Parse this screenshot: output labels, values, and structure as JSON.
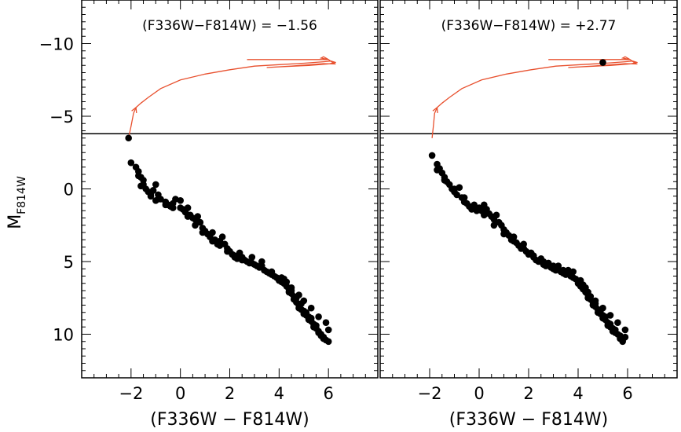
{
  "chart_data": {
    "type": "scatter",
    "ylabel": "M",
    "ylabel_sub": "F814W",
    "ylim": [
      13,
      -13
    ],
    "yticks": [
      {
        "value": -10,
        "label": "−10"
      },
      {
        "value": -5,
        "label": "−5"
      },
      {
        "value": 0,
        "label": "0"
      },
      {
        "value": 5,
        "label": "5"
      },
      {
        "value": 10,
        "label": "10"
      }
    ],
    "hline": -3.8,
    "track_color": "#e8502e",
    "marker_color": "#000000",
    "panels": [
      {
        "title": "(F336W−F814W) = −1.56",
        "xlabel": "(F336W − F814W)",
        "xlim": [
          -4,
          8
        ],
        "xticks": [
          {
            "value": -2,
            "label": "−2"
          },
          {
            "value": 0,
            "label": "0"
          },
          {
            "value": 2,
            "label": "2"
          },
          {
            "value": 4,
            "label": "4"
          },
          {
            "value": 6,
            "label": "6"
          }
        ],
        "highlight": {
          "x": -2.1,
          "y": -3.5
        },
        "track": [
          [
            -2.1,
            -3.5
          ],
          [
            -2.0,
            -4.3
          ],
          [
            -1.9,
            -5.2
          ],
          [
            -1.8,
            -5.6
          ],
          [
            -1.6,
            -5.9
          ],
          [
            -1.3,
            -6.3
          ],
          [
            -0.8,
            -6.9
          ],
          [
            0.0,
            -7.5
          ],
          [
            1.0,
            -7.9
          ],
          [
            2.0,
            -8.2
          ],
          [
            3.0,
            -8.45
          ],
          [
            4.0,
            -8.55
          ],
          [
            5.0,
            -8.65
          ],
          [
            5.8,
            -8.75
          ],
          [
            6.1,
            -8.8
          ],
          [
            6.3,
            -8.7
          ],
          [
            6.0,
            -8.6
          ],
          [
            5.2,
            -8.5
          ],
          [
            4.0,
            -8.4
          ],
          [
            3.5,
            -8.35
          ],
          [
            4.5,
            -8.45
          ],
          [
            5.8,
            -8.62
          ],
          [
            6.25,
            -8.6
          ],
          [
            6.0,
            -8.9
          ],
          [
            5.8,
            -9.1
          ],
          [
            5.7,
            -9.0
          ],
          [
            6.0,
            -8.9
          ],
          [
            5.0,
            -8.9
          ],
          [
            4.0,
            -8.9
          ],
          [
            2.7,
            -8.9
          ]
        ],
        "stars": [
          [
            -2.0,
            -1.8
          ],
          [
            -1.8,
            -1.5
          ],
          [
            -1.7,
            -1.2
          ],
          [
            -1.6,
            -0.8
          ],
          [
            -1.5,
            -0.6
          ],
          [
            -1.6,
            -0.2
          ],
          [
            -1.4,
            0.0
          ],
          [
            -1.3,
            0.2
          ],
          [
            -1.2,
            0.5
          ],
          [
            -1.1,
            0.1
          ],
          [
            -1.0,
            0.8
          ],
          [
            -1.0,
            -0.3
          ],
          [
            -0.9,
            0.4
          ],
          [
            -0.8,
            0.7
          ],
          [
            -0.6,
            0.9
          ],
          [
            -0.5,
            1.1
          ],
          [
            -0.4,
            1.2
          ],
          [
            -0.3,
            1.0
          ],
          [
            -0.2,
            0.7
          ],
          [
            0.0,
            0.8
          ],
          [
            0.1,
            1.4
          ],
          [
            0.2,
            1.6
          ],
          [
            0.3,
            1.3
          ],
          [
            0.4,
            1.8
          ],
          [
            0.5,
            2.0
          ],
          [
            0.6,
            2.1
          ],
          [
            0.7,
            1.9
          ],
          [
            0.8,
            2.3
          ],
          [
            0.9,
            2.7
          ],
          [
            1.0,
            2.9
          ],
          [
            1.1,
            3.1
          ],
          [
            1.2,
            3.3
          ],
          [
            1.3,
            3.0
          ],
          [
            1.4,
            3.5
          ],
          [
            1.5,
            3.8
          ],
          [
            1.6,
            3.6
          ],
          [
            1.7,
            3.3
          ],
          [
            1.8,
            3.8
          ],
          [
            1.9,
            4.1
          ],
          [
            2.0,
            4.3
          ],
          [
            2.1,
            4.5
          ],
          [
            2.2,
            4.6
          ],
          [
            2.3,
            4.8
          ],
          [
            2.4,
            4.4
          ],
          [
            2.5,
            4.7
          ],
          [
            2.6,
            4.9
          ],
          [
            2.7,
            5.0
          ],
          [
            2.8,
            5.1
          ],
          [
            2.9,
            4.7
          ],
          [
            3.0,
            5.2
          ],
          [
            3.1,
            5.3
          ],
          [
            3.2,
            5.4
          ],
          [
            3.3,
            5.0
          ],
          [
            3.4,
            5.6
          ],
          [
            3.5,
            5.7
          ],
          [
            3.6,
            5.8
          ],
          [
            3.7,
            5.9
          ],
          [
            3.8,
            6.0
          ],
          [
            3.9,
            6.1
          ],
          [
            4.0,
            6.3
          ],
          [
            4.1,
            6.4
          ],
          [
            4.2,
            6.5
          ],
          [
            4.2,
            6.2
          ],
          [
            4.3,
            6.7
          ],
          [
            4.4,
            6.9
          ],
          [
            4.4,
            7.1
          ],
          [
            4.5,
            7.2
          ],
          [
            4.5,
            7.0
          ],
          [
            4.6,
            7.4
          ],
          [
            4.6,
            7.6
          ],
          [
            4.7,
            7.8
          ],
          [
            4.7,
            7.5
          ],
          [
            4.8,
            8.0
          ],
          [
            4.8,
            8.2
          ],
          [
            4.9,
            7.9
          ],
          [
            4.9,
            8.3
          ],
          [
            5.0,
            8.4
          ],
          [
            5.0,
            8.6
          ],
          [
            5.1,
            8.7
          ],
          [
            5.1,
            8.5
          ],
          [
            5.2,
            8.8
          ],
          [
            5.2,
            9.0
          ],
          [
            5.3,
            9.1
          ],
          [
            5.3,
            8.9
          ],
          [
            5.4,
            9.3
          ],
          [
            5.4,
            9.5
          ],
          [
            5.5,
            9.6
          ],
          [
            5.5,
            9.4
          ],
          [
            5.6,
            9.8
          ],
          [
            5.6,
            9.9
          ],
          [
            5.7,
            10.0
          ],
          [
            5.7,
            10.1
          ],
          [
            5.8,
            10.2
          ],
          [
            5.8,
            10.3
          ],
          [
            5.9,
            10.4
          ],
          [
            6.0,
            10.5
          ],
          [
            6.0,
            9.7
          ],
          [
            5.9,
            9.2
          ],
          [
            5.6,
            8.8
          ],
          [
            5.3,
            8.2
          ],
          [
            5.0,
            7.7
          ],
          [
            4.8,
            7.3
          ],
          [
            4.5,
            6.8
          ],
          [
            4.3,
            6.4
          ],
          [
            4.1,
            6.1
          ],
          [
            3.7,
            5.7
          ],
          [
            3.3,
            5.3
          ],
          [
            2.9,
            5.1
          ],
          [
            2.5,
            4.9
          ],
          [
            2.2,
            4.7
          ],
          [
            1.9,
            4.3
          ],
          [
            1.6,
            3.9
          ],
          [
            1.3,
            3.6
          ],
          [
            0.9,
            3.0
          ],
          [
            0.6,
            2.5
          ],
          [
            0.3,
            1.9
          ],
          [
            0.0,
            1.3
          ],
          [
            -0.3,
            1.3
          ],
          [
            -0.6,
            1.1
          ],
          [
            -0.9,
            0.7
          ],
          [
            -1.2,
            0.3
          ],
          [
            -1.5,
            -0.3
          ],
          [
            -1.7,
            -0.9
          ]
        ]
      },
      {
        "title": "(F336W−F814W) = +2.77",
        "xlabel": "(F336W − F814W)",
        "xlim": [
          -4,
          8
        ],
        "xticks": [
          {
            "value": -2,
            "label": "−2"
          },
          {
            "value": 0,
            "label": "0"
          },
          {
            "value": 2,
            "label": "2"
          },
          {
            "value": 4,
            "label": "4"
          },
          {
            "value": 6,
            "label": "6"
          }
        ],
        "highlight": {
          "x": 5.0,
          "y": -8.7
        },
        "track": [
          [
            -1.9,
            -3.5
          ],
          [
            -1.85,
            -4.3
          ],
          [
            -1.8,
            -5.2
          ],
          [
            -1.7,
            -5.6
          ],
          [
            -1.5,
            -5.9
          ],
          [
            -1.2,
            -6.3
          ],
          [
            -0.7,
            -6.9
          ],
          [
            0.1,
            -7.5
          ],
          [
            1.1,
            -7.9
          ],
          [
            2.1,
            -8.2
          ],
          [
            3.1,
            -8.45
          ],
          [
            4.1,
            -8.55
          ],
          [
            5.1,
            -8.65
          ],
          [
            5.9,
            -8.75
          ],
          [
            6.2,
            -8.8
          ],
          [
            6.4,
            -8.7
          ],
          [
            6.1,
            -8.6
          ],
          [
            5.3,
            -8.5
          ],
          [
            4.1,
            -8.4
          ],
          [
            3.6,
            -8.35
          ],
          [
            4.6,
            -8.45
          ],
          [
            5.9,
            -8.62
          ],
          [
            6.35,
            -8.6
          ],
          [
            6.1,
            -8.9
          ],
          [
            5.9,
            -9.1
          ],
          [
            5.8,
            -9.0
          ],
          [
            6.1,
            -8.9
          ],
          [
            5.1,
            -8.9
          ],
          [
            4.1,
            -8.9
          ],
          [
            2.8,
            -8.9
          ]
        ],
        "stars": [
          [
            -1.9,
            -2.3
          ],
          [
            -1.7,
            -1.7
          ],
          [
            -1.6,
            -1.4
          ],
          [
            -1.5,
            -1.1
          ],
          [
            -1.4,
            -0.8
          ],
          [
            -1.3,
            -0.5
          ],
          [
            -1.2,
            -0.3
          ],
          [
            -1.1,
            0.0
          ],
          [
            -1.0,
            0.2
          ],
          [
            -0.9,
            0.4
          ],
          [
            -0.8,
            -0.1
          ],
          [
            -0.7,
            0.6
          ],
          [
            -0.6,
            0.9
          ],
          [
            -0.5,
            1.0
          ],
          [
            -0.4,
            1.2
          ],
          [
            -0.3,
            1.4
          ],
          [
            -0.2,
            1.1
          ],
          [
            -0.1,
            1.5
          ],
          [
            0.0,
            1.3
          ],
          [
            0.1,
            1.5
          ],
          [
            0.2,
            1.1
          ],
          [
            0.3,
            1.4
          ],
          [
            0.4,
            1.7
          ],
          [
            0.5,
            1.9
          ],
          [
            0.6,
            2.1
          ],
          [
            0.7,
            1.8
          ],
          [
            0.8,
            2.3
          ],
          [
            0.9,
            2.5
          ],
          [
            1.0,
            2.8
          ],
          [
            1.1,
            3.0
          ],
          [
            1.2,
            3.2
          ],
          [
            1.3,
            3.5
          ],
          [
            1.4,
            3.3
          ],
          [
            1.5,
            3.7
          ],
          [
            1.6,
            3.9
          ],
          [
            1.7,
            4.1
          ],
          [
            1.8,
            3.8
          ],
          [
            1.9,
            4.3
          ],
          [
            2.0,
            4.5
          ],
          [
            2.1,
            4.4
          ],
          [
            2.2,
            4.7
          ],
          [
            2.3,
            4.9
          ],
          [
            2.4,
            5.0
          ],
          [
            2.5,
            4.8
          ],
          [
            2.6,
            5.2
          ],
          [
            2.7,
            5.3
          ],
          [
            2.8,
            5.1
          ],
          [
            2.9,
            5.4
          ],
          [
            3.0,
            5.5
          ],
          [
            3.1,
            5.6
          ],
          [
            3.2,
            5.3
          ],
          [
            3.3,
            5.7
          ],
          [
            3.4,
            5.8
          ],
          [
            3.5,
            5.9
          ],
          [
            3.6,
            5.6
          ],
          [
            3.7,
            6.0
          ],
          [
            3.8,
            5.7
          ],
          [
            3.9,
            6.2
          ],
          [
            4.0,
            6.5
          ],
          [
            4.1,
            6.7
          ],
          [
            4.1,
            6.3
          ],
          [
            4.2,
            6.9
          ],
          [
            4.3,
            7.1
          ],
          [
            4.3,
            6.8
          ],
          [
            4.4,
            7.3
          ],
          [
            4.4,
            7.5
          ],
          [
            4.5,
            7.6
          ],
          [
            4.5,
            7.4
          ],
          [
            4.6,
            7.8
          ],
          [
            4.6,
            8.0
          ],
          [
            4.7,
            8.1
          ],
          [
            4.7,
            7.9
          ],
          [
            4.8,
            8.3
          ],
          [
            4.8,
            8.5
          ],
          [
            4.9,
            8.6
          ],
          [
            4.9,
            8.4
          ],
          [
            5.0,
            8.7
          ],
          [
            5.0,
            8.9
          ],
          [
            5.1,
            9.0
          ],
          [
            5.1,
            8.8
          ],
          [
            5.2,
            9.2
          ],
          [
            5.2,
            9.4
          ],
          [
            5.3,
            9.5
          ],
          [
            5.3,
            9.3
          ],
          [
            5.4,
            9.6
          ],
          [
            5.4,
            9.8
          ],
          [
            5.5,
            9.9
          ],
          [
            5.5,
            9.7
          ],
          [
            5.6,
            10.0
          ],
          [
            5.7,
            10.1
          ],
          [
            5.7,
            10.3
          ],
          [
            5.8,
            10.4
          ],
          [
            5.8,
            10.5
          ],
          [
            5.9,
            10.2
          ],
          [
            5.9,
            9.7
          ],
          [
            5.6,
            9.2
          ],
          [
            5.3,
            8.7
          ],
          [
            5.0,
            8.2
          ],
          [
            4.7,
            7.7
          ],
          [
            4.4,
            7.1
          ],
          [
            4.2,
            6.6
          ],
          [
            3.8,
            6.1
          ],
          [
            3.4,
            5.6
          ],
          [
            3.0,
            5.3
          ],
          [
            2.6,
            5.0
          ],
          [
            2.2,
            4.6
          ],
          [
            1.8,
            4.1
          ],
          [
            1.4,
            3.6
          ],
          [
            1.0,
            3.1
          ],
          [
            0.6,
            2.5
          ],
          [
            0.2,
            1.8
          ],
          [
            -0.2,
            1.2
          ],
          [
            -0.6,
            0.6
          ],
          [
            -1.0,
            0.0
          ],
          [
            -1.4,
            -0.6
          ],
          [
            -1.7,
            -1.3
          ]
        ]
      }
    ]
  }
}
